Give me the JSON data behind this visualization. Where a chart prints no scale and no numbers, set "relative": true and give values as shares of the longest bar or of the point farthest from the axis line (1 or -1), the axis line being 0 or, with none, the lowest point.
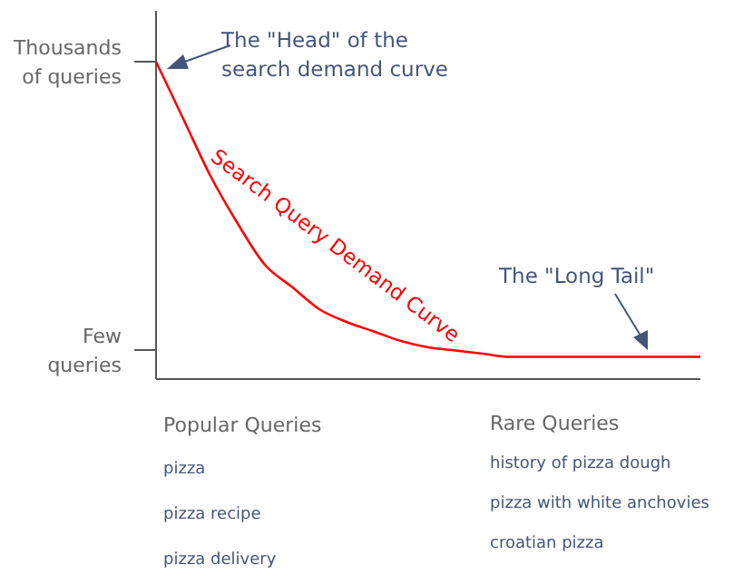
{
  "chart_data": {
    "type": "line",
    "relative": true,
    "categories": [
      null,
      null,
      null,
      null,
      null,
      null,
      null,
      null,
      null,
      null,
      null,
      null,
      null,
      null,
      null,
      null,
      null,
      null,
      null,
      null,
      null
    ],
    "series": [
      {
        "name": "Search Query Demand Curve",
        "color": "#ff0000",
        "values": [
          1.0,
          0.82,
          0.64,
          0.49,
          0.36,
          0.29,
          0.22,
          0.18,
          0.15,
          0.12,
          0.1,
          0.09,
          0.08,
          0.07,
          0.07,
          0.07,
          0.07,
          0.07,
          0.07,
          0.07,
          0.07
        ]
      }
    ],
    "marker": "none",
    "line_style": "solid",
    "annotations": [
      "Thousands of queries",
      "Few queries",
      "The \"Head\" of the search demand curve",
      "The \"Long Tail\"",
      "Popular Queries",
      "pizza",
      "pizza recipe",
      "pizza delivery",
      "Rare Queries",
      "history of pizza dough",
      "pizza with white anchovies",
      "croatian pizza"
    ]
  }
}
